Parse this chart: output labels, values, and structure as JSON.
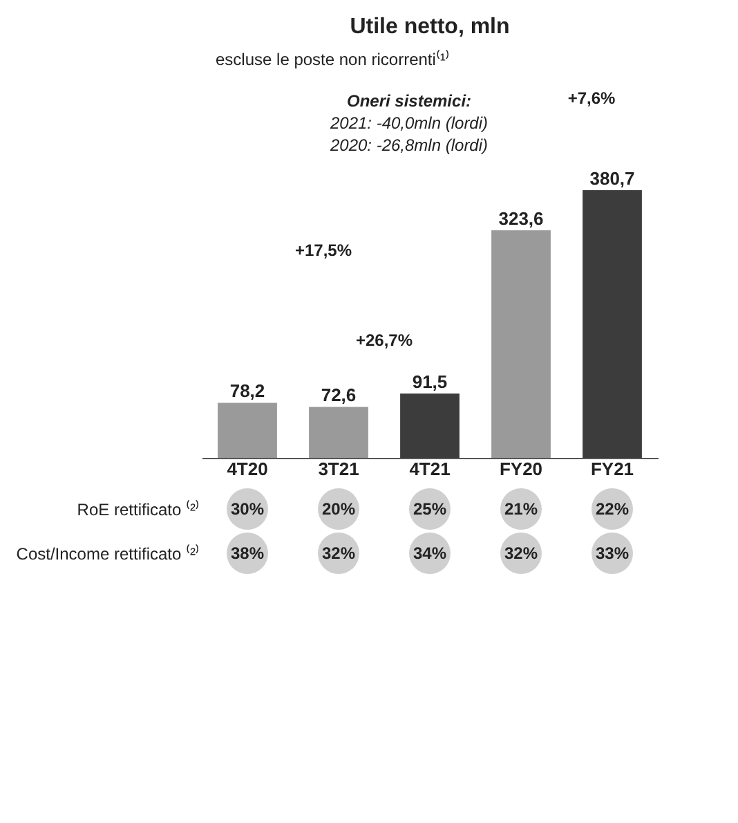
{
  "chart_data": [
    {
      "type": "bar",
      "title": "Utile netto, mln",
      "categories": [
        "4T20",
        "3T21",
        "4T21",
        "FY20",
        "FY21"
      ],
      "values": [
        78.2,
        72.6,
        91.5,
        323.6,
        380.7
      ],
      "colors": [
        "#9a9a9a",
        "#9a9a9a",
        "#3c3c3c",
        "#9a9a9a",
        "#3c3c3c"
      ],
      "value_labels": [
        "78,2",
        "72,6",
        "91,5",
        "323,6",
        "380,7"
      ],
      "annotations": [
        "escluse le poste non ricorrenti⁽¹⁾",
        "Oneri sistemici:",
        "2021: -40,0mln (lordi)",
        "2020: -26,8mln (lordi)",
        "+17,5%",
        "+26,7%",
        "+7,6%"
      ]
    },
    {
      "type": "other",
      "y_categories": [
        "RoE rettificato ⁽²⁾",
        "Cost/Income rettificato ⁽²⁾"
      ],
      "cell_labels": [
        [
          "30%",
          "20%",
          "25%",
          "21%",
          "22%"
        ],
        [
          "38%",
          "32%",
          "34%",
          "32%",
          "33%"
        ]
      ]
    }
  ]
}
